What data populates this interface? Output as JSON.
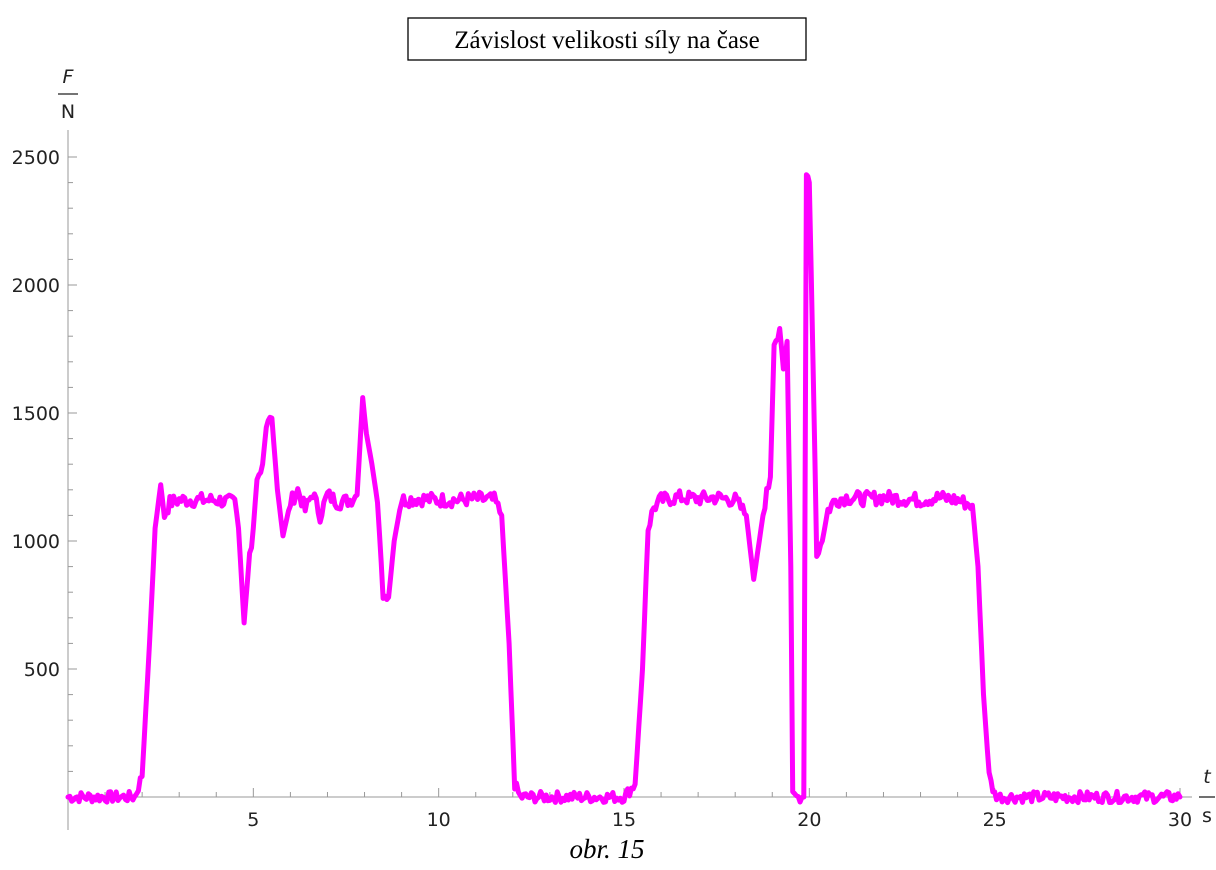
{
  "chart_data": {
    "type": "line",
    "title": "Závislost velikosti síly na čase",
    "caption": "obr. 15",
    "xlabel": {
      "quantity": "t",
      "unit": "s"
    },
    "ylabel": {
      "quantity": "F",
      "unit": "N"
    },
    "xlim": [
      0,
      30
    ],
    "ylim": [
      0,
      2500
    ],
    "x_ticks": [
      "5",
      "10",
      "15",
      "20",
      "25",
      "30"
    ],
    "y_ticks": [
      "500",
      "1000",
      "1500",
      "2000",
      "2500"
    ],
    "grid": false,
    "color": "#ff00ff",
    "series": [
      {
        "x": [
          0,
          1.8,
          2.0,
          2.2,
          2.35,
          2.5,
          2.6,
          2.75,
          3.0,
          3.5,
          4.0,
          4.5,
          4.6,
          4.75,
          4.9,
          5.0,
          5.1,
          5.25,
          5.35,
          5.5,
          5.65,
          5.8,
          6.0,
          6.2,
          6.4,
          6.6,
          6.8,
          7.0,
          7.3,
          7.6,
          7.8,
          7.95,
          8.05,
          8.2,
          8.35,
          8.5,
          8.65,
          8.8,
          9.0,
          9.5,
          10.0,
          10.5,
          11.0,
          11.5,
          11.7,
          11.9,
          12.05,
          12.2,
          15.0,
          15.3,
          15.5,
          15.65,
          15.8,
          16.0,
          16.5,
          17.0,
          17.5,
          18.0,
          18.3,
          18.5,
          18.65,
          18.8,
          18.95,
          19.05,
          19.2,
          19.3,
          19.4,
          19.5,
          19.55,
          19.7,
          19.85,
          19.92,
          20.0,
          20.1,
          20.2,
          20.35,
          20.5,
          20.7,
          21.0,
          21.5,
          22.0,
          22.5,
          23.0,
          23.5,
          24.0,
          24.4,
          24.55,
          24.7,
          24.85,
          25.0,
          25.15,
          30.0
        ],
        "y": [
          0,
          0,
          80,
          600,
          1050,
          1220,
          1100,
          1150,
          1160,
          1160,
          1160,
          1150,
          1050,
          680,
          950,
          1050,
          1250,
          1300,
          1450,
          1480,
          1200,
          1020,
          1150,
          1200,
          1120,
          1190,
          1100,
          1180,
          1150,
          1160,
          1180,
          1560,
          1420,
          1300,
          1150,
          800,
          780,
          1000,
          1160,
          1165,
          1160,
          1160,
          1165,
          1160,
          1100,
          600,
          50,
          0,
          0,
          50,
          500,
          1050,
          1130,
          1160,
          1170,
          1165,
          1170,
          1160,
          1100,
          850,
          1000,
          1150,
          1250,
          1780,
          1830,
          1680,
          1780,
          900,
          0,
          0,
          0,
          2450,
          2400,
          1700,
          950,
          1000,
          1120,
          1160,
          1170,
          1165,
          1170,
          1165,
          1160,
          1170,
          1160,
          1140,
          900,
          400,
          80,
          10,
          0,
          0
        ]
      }
    ]
  }
}
